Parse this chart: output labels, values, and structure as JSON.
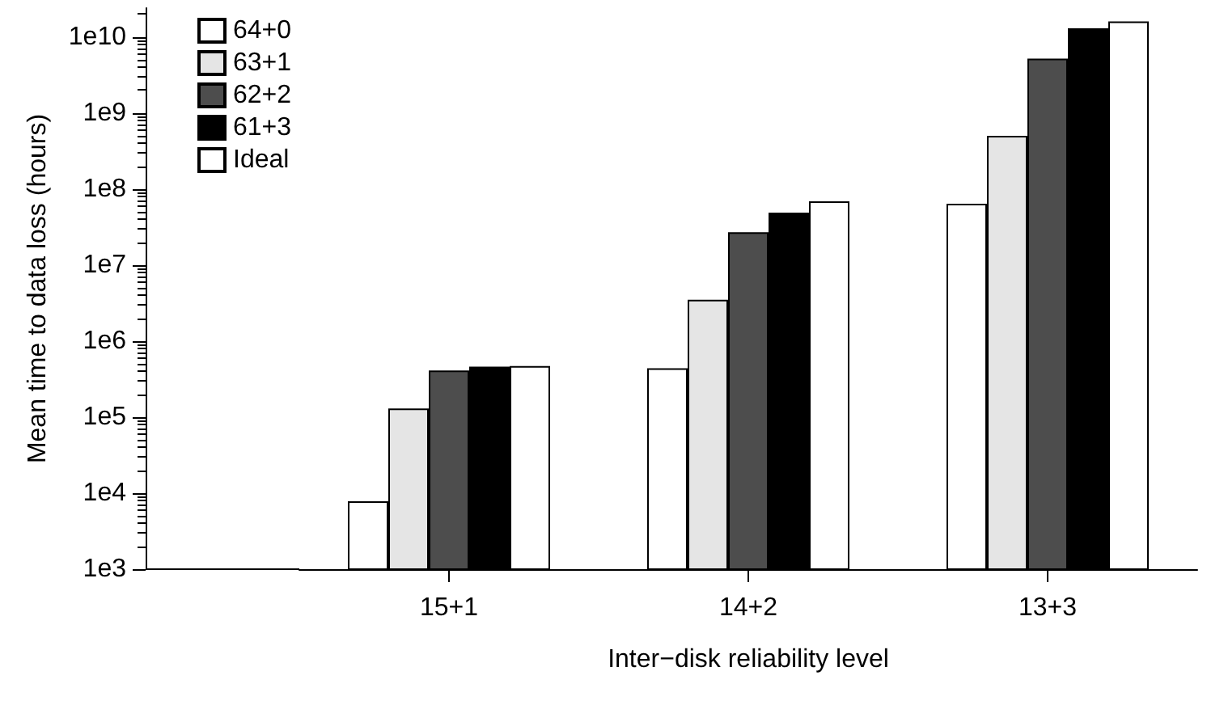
{
  "chart_data": {
    "type": "bar",
    "xlabel": "Inter−disk reliability level",
    "ylabel": "Mean time to data loss (hours)",
    "categories": [
      "15+1",
      "14+2",
      "13+3"
    ],
    "series": [
      {
        "name": "64+0",
        "color": "#ffffff",
        "values": [
          7800,
          440000,
          64000000
        ]
      },
      {
        "name": "63+1",
        "color": "#e5e5e5",
        "values": [
          130000,
          3500000,
          500000000
        ]
      },
      {
        "name": "62+2",
        "color": "#4d4d4d",
        "values": [
          410000,
          27000000,
          5200000000
        ]
      },
      {
        "name": "61+3",
        "color": "#000000",
        "values": [
          460000,
          49000000,
          13000000000
        ]
      },
      {
        "name": "Ideal",
        "color": "#ffffff",
        "values": [
          470000,
          69000000,
          16000000000
        ]
      }
    ],
    "log": "y",
    "ylim": [
      1000,
      24000000000
    ],
    "yticks": [
      {
        "value": 1000,
        "label": "1e3"
      },
      {
        "value": 10000,
        "label": "1e4"
      },
      {
        "value": 100000,
        "label": "1e5"
      },
      {
        "value": 1000000,
        "label": "1e6"
      },
      {
        "value": 10000000,
        "label": "1e7"
      },
      {
        "value": 100000000,
        "label": "1e8"
      },
      {
        "value": 1000000000,
        "label": "1e9"
      },
      {
        "value": 10000000000,
        "label": "1e10"
      }
    ],
    "legend": "top left",
    "grid": false
  }
}
